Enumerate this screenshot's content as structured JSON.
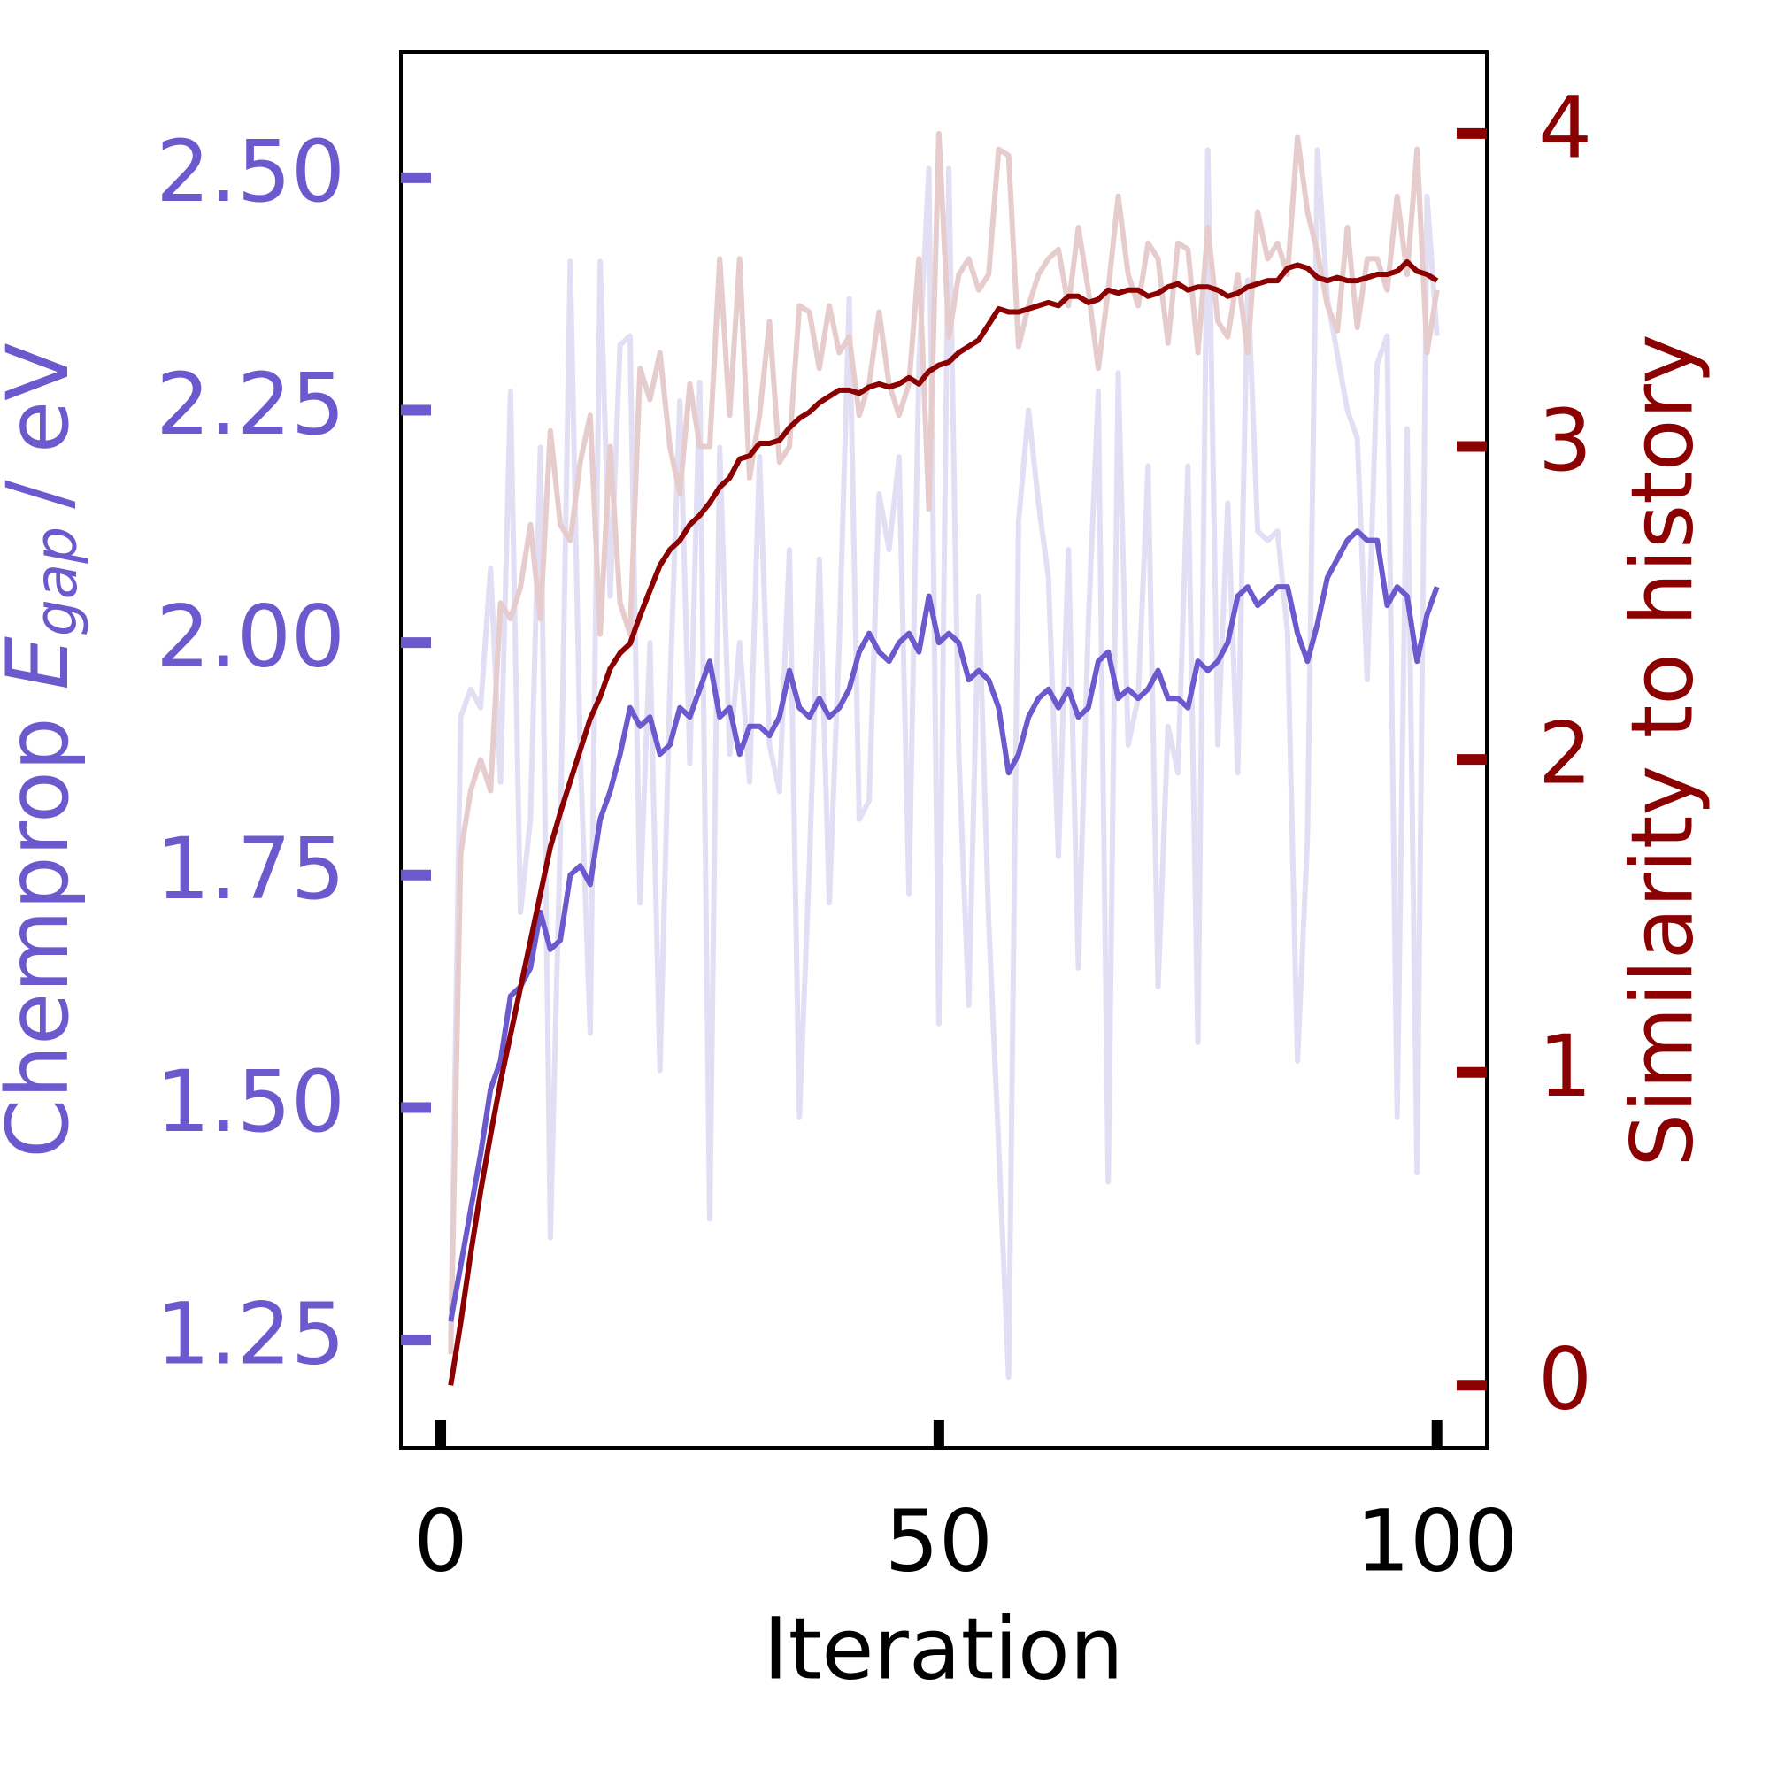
{
  "chart_data": {
    "type": "line",
    "x_label": "Iteration",
    "y_label": {
      "text": "Chemprop",
      "symbol": "E",
      "subscript": "gap",
      "unit": "/ eV"
    },
    "y2_label": "Similarity to history",
    "xlim": [
      -4,
      105
    ],
    "xticks": [
      0,
      50,
      100
    ],
    "ylim": [
      1.134,
      2.635
    ],
    "yticks": [
      {
        "value": 1.25,
        "label": "1.25"
      },
      {
        "value": 1.5,
        "label": "1.50"
      },
      {
        "value": 1.75,
        "label": "1.75"
      },
      {
        "value": 2.0,
        "label": "2.00"
      },
      {
        "value": 2.25,
        "label": "2.25"
      },
      {
        "value": 2.5,
        "label": "2.50"
      }
    ],
    "y_color": "#6a5acd",
    "y2lim": [
      -0.2,
      4.26
    ],
    "y2ticks": [
      0,
      1,
      2,
      3,
      4
    ],
    "y2_color": "#8b0000",
    "x": [
      1,
      2,
      3,
      4,
      5,
      6,
      7,
      8,
      9,
      10,
      11,
      12,
      13,
      14,
      15,
      16,
      17,
      18,
      19,
      20,
      21,
      22,
      23,
      24,
      25,
      26,
      27,
      28,
      29,
      30,
      31,
      32,
      33,
      34,
      35,
      36,
      37,
      38,
      39,
      40,
      41,
      42,
      43,
      44,
      45,
      46,
      47,
      48,
      49,
      50,
      51,
      52,
      53,
      54,
      55,
      56,
      57,
      58,
      59,
      60,
      61,
      62,
      63,
      64,
      65,
      66,
      67,
      68,
      69,
      70,
      71,
      72,
      73,
      74,
      75,
      76,
      77,
      78,
      79,
      80,
      81,
      82,
      83,
      84,
      85,
      86,
      87,
      88,
      89,
      90,
      91,
      92,
      93,
      94,
      95,
      96,
      97,
      98,
      99,
      100
    ],
    "series": [
      {
        "color": "#e2dff5",
        "axis": "y",
        "values": [
          1.25,
          1.92,
          1.95,
          1.93,
          2.08,
          1.85,
          2.27,
          1.71,
          1.81,
          2.21,
          1.36,
          1.79,
          2.41,
          1.88,
          1.58,
          2.41,
          2.05,
          2.32,
          2.33,
          1.72,
          2.0,
          1.54,
          1.95,
          2.26,
          1.87,
          2.28,
          1.38,
          2.21,
          1.88,
          2.0,
          1.85,
          2.2,
          1.89,
          1.84,
          2.1,
          1.49,
          1.76,
          2.09,
          1.72,
          2.0,
          2.37,
          1.81,
          1.83,
          2.16,
          2.1,
          2.2,
          1.73,
          2.3,
          2.51,
          1.59,
          2.51,
          1.88,
          1.61,
          2.05,
          1.7,
          1.46,
          1.21,
          2.13,
          2.25,
          2.15,
          2.07,
          1.77,
          2.1,
          1.65,
          2.02,
          2.27,
          1.42,
          2.29,
          1.89,
          1.94,
          2.19,
          1.63,
          1.91,
          1.86,
          2.19,
          1.57,
          2.53,
          1.89,
          2.15,
          1.86,
          2.39,
          2.12,
          2.11,
          2.12,
          2.01,
          1.55,
          1.79,
          2.53,
          2.37,
          2.31,
          2.25,
          2.22,
          1.96,
          2.3,
          2.33,
          1.49,
          2.23,
          1.43,
          2.48,
          2.33
        ]
      },
      {
        "color": "#e6cccc",
        "axis": "y2",
        "values": [
          0.1,
          1.7,
          1.9,
          2.0,
          1.9,
          2.5,
          2.45,
          2.55,
          2.75,
          2.45,
          3.05,
          2.75,
          2.7,
          2.95,
          3.1,
          2.4,
          3.0,
          2.5,
          2.4,
          3.25,
          3.15,
          3.3,
          3.0,
          2.85,
          3.2,
          3.0,
          3.0,
          3.6,
          3.1,
          3.6,
          2.9,
          3.1,
          3.4,
          2.95,
          3.0,
          3.45,
          3.43,
          3.25,
          3.45,
          3.3,
          3.35,
          3.1,
          3.2,
          3.43,
          3.2,
          3.1,
          3.2,
          3.6,
          2.8,
          4.0,
          3.35,
          3.55,
          3.6,
          3.5,
          3.55,
          3.95,
          3.93,
          3.32,
          3.45,
          3.55,
          3.6,
          3.63,
          3.45,
          3.7,
          3.5,
          3.25,
          3.5,
          3.8,
          3.55,
          3.45,
          3.65,
          3.6,
          3.33,
          3.65,
          3.63,
          3.3,
          3.7,
          3.4,
          3.35,
          3.55,
          3.3,
          3.75,
          3.6,
          3.65,
          3.55,
          3.99,
          3.75,
          3.62,
          3.45,
          3.37,
          3.7,
          3.38,
          3.6,
          3.6,
          3.5,
          3.8,
          3.55,
          3.95,
          3.3,
          3.5
        ]
      },
      {
        "color": "#6a5acd",
        "axis": "y",
        "values": [
          1.27,
          1.33,
          1.39,
          1.45,
          1.52,
          1.55,
          1.62,
          1.63,
          1.65,
          1.71,
          1.67,
          1.68,
          1.75,
          1.76,
          1.74,
          1.81,
          1.84,
          1.88,
          1.93,
          1.91,
          1.92,
          1.88,
          1.89,
          1.93,
          1.92,
          1.95,
          1.98,
          1.92,
          1.93,
          1.88,
          1.91,
          1.91,
          1.9,
          1.92,
          1.97,
          1.93,
          1.92,
          1.94,
          1.92,
          1.93,
          1.95,
          1.99,
          2.01,
          1.99,
          1.98,
          2.0,
          2.01,
          1.99,
          2.05,
          2.0,
          2.01,
          2.0,
          1.96,
          1.97,
          1.96,
          1.93,
          1.86,
          1.88,
          1.92,
          1.94,
          1.95,
          1.93,
          1.95,
          1.92,
          1.93,
          1.98,
          1.99,
          1.94,
          1.95,
          1.94,
          1.95,
          1.97,
          1.94,
          1.94,
          1.93,
          1.98,
          1.97,
          1.98,
          2.0,
          2.05,
          2.06,
          2.04,
          2.05,
          2.06,
          2.06,
          2.01,
          1.98,
          2.02,
          2.07,
          2.09,
          2.11,
          2.12,
          2.11,
          2.11,
          2.04,
          2.06,
          2.05,
          1.98,
          2.03,
          2.06
        ]
      },
      {
        "color": "#8b0000",
        "axis": "y2",
        "values": [
          0,
          0.2,
          0.42,
          0.62,
          0.8,
          0.97,
          1.12,
          1.27,
          1.42,
          1.57,
          1.72,
          1.83,
          1.93,
          2.03,
          2.13,
          2.2,
          2.29,
          2.34,
          2.37,
          2.46,
          2.54,
          2.62,
          2.67,
          2.7,
          2.75,
          2.78,
          2.82,
          2.87,
          2.9,
          2.96,
          2.97,
          3.01,
          3.01,
          3.02,
          3.06,
          3.09,
          3.11,
          3.14,
          3.16,
          3.18,
          3.18,
          3.17,
          3.19,
          3.2,
          3.19,
          3.2,
          3.22,
          3.2,
          3.24,
          3.26,
          3.27,
          3.3,
          3.32,
          3.34,
          3.39,
          3.44,
          3.43,
          3.43,
          3.44,
          3.45,
          3.46,
          3.45,
          3.48,
          3.48,
          3.46,
          3.47,
          3.5,
          3.49,
          3.5,
          3.5,
          3.48,
          3.49,
          3.51,
          3.52,
          3.5,
          3.51,
          3.51,
          3.5,
          3.48,
          3.49,
          3.51,
          3.52,
          3.53,
          3.53,
          3.57,
          3.58,
          3.57,
          3.54,
          3.53,
          3.54,
          3.53,
          3.53,
          3.54,
          3.55,
          3.55,
          3.56,
          3.59,
          3.56,
          3.55,
          3.53
        ]
      }
    ]
  }
}
